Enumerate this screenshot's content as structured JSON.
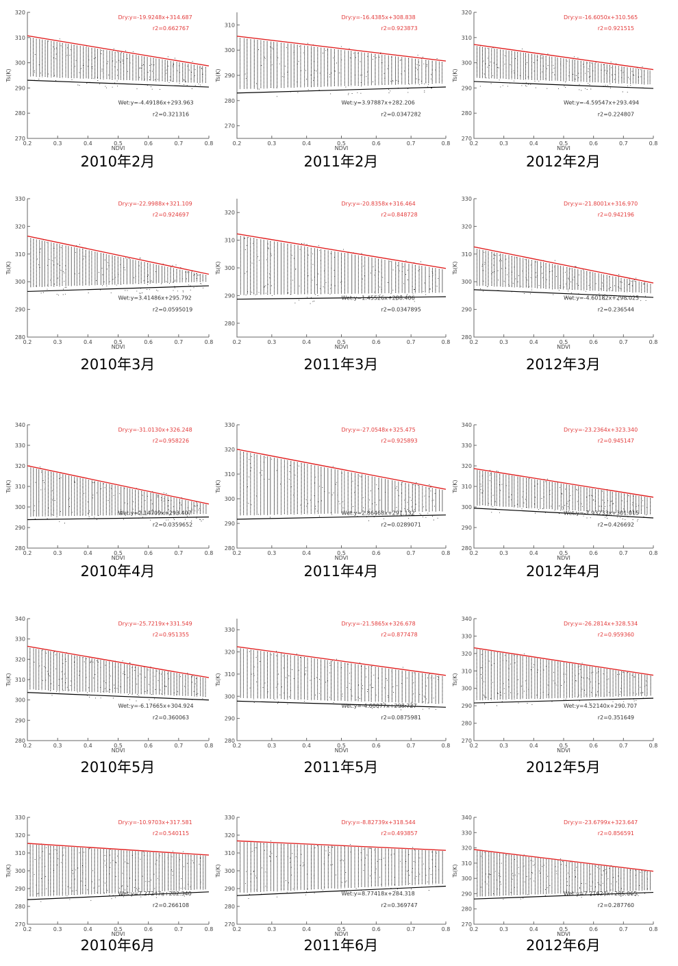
{
  "colors": {
    "dry": "#e02020",
    "wet": "#000000",
    "points": "#000000",
    "axis": "#666666"
  },
  "chart_data": [
    {
      "caption": "2010年2月",
      "type": "scatter",
      "xlabel": "NDVI",
      "ylabel": "Ts(K)",
      "xlim": [
        0.2,
        0.8
      ],
      "ylim": [
        270,
        320
      ],
      "xticks": [
        "0.2",
        "0.3",
        "0.4",
        "0.5",
        "0.6",
        "0.7",
        "0.8"
      ],
      "yticks": [
        "270",
        "280",
        "290",
        "300",
        "310",
        "320"
      ],
      "dry_edge": {
        "equation": "Dry:y=-19.9248x+314.687",
        "r2": "r2=0.662767",
        "slope": -19.9248,
        "intercept": 314.687
      },
      "wet_edge": {
        "equation": "Wet:y=-4.49186x+293.963",
        "r2": "r2=0.321316",
        "slope": -4.49186,
        "intercept": 293.963
      }
    },
    {
      "caption": "2011年2月",
      "type": "scatter",
      "xlabel": "NDVI",
      "ylabel": "Ts(K)",
      "xlim": [
        0.2,
        0.8
      ],
      "ylim": [
        265,
        315
      ],
      "xticks": [
        "0.2",
        "0.3",
        "0.4",
        "0.5",
        "0.6",
        "0.7",
        "0.8"
      ],
      "yticks": [
        "270",
        "280",
        "290",
        "300",
        "310"
      ],
      "dry_edge": {
        "equation": "Dry:y=-16.4385x+308.838",
        "r2": "r2=0.923873",
        "slope": -16.4385,
        "intercept": 308.838
      },
      "wet_edge": {
        "equation": "Wet:y=3.97887x+282.206",
        "r2": "r2=0.0347282",
        "slope": 3.97887,
        "intercept": 282.206
      }
    },
    {
      "caption": "2012年2月",
      "type": "scatter",
      "xlabel": "NDVI",
      "ylabel": "Ts(K)",
      "xlim": [
        0.2,
        0.8
      ],
      "ylim": [
        270,
        320
      ],
      "xticks": [
        "0.2",
        "0.3",
        "0.4",
        "0.5",
        "0.6",
        "0.7",
        "0.8"
      ],
      "yticks": [
        "270",
        "280",
        "290",
        "300",
        "310",
        "320"
      ],
      "dry_edge": {
        "equation": "Dry:y=-16.6050x+310.565",
        "r2": "r2=0.921515",
        "slope": -16.605,
        "intercept": 310.565
      },
      "wet_edge": {
        "equation": "Wet:y=-4.59547x+293.494",
        "r2": "r2=0.224807",
        "slope": -4.59547,
        "intercept": 293.494
      }
    },
    {
      "caption": "2010年3月",
      "type": "scatter",
      "xlabel": "NDVI",
      "ylabel": "Ts(K)",
      "xlim": [
        0.2,
        0.8
      ],
      "ylim": [
        280,
        330
      ],
      "xticks": [
        "0.2",
        "0.3",
        "0.4",
        "0.5",
        "0.6",
        "0.7",
        "0.8"
      ],
      "yticks": [
        "280",
        "290",
        "300",
        "310",
        "320",
        "330"
      ],
      "dry_edge": {
        "equation": "Dry:y=-22.9988x+321.109",
        "r2": "r2=0.924697",
        "slope": -22.9988,
        "intercept": 321.109
      },
      "wet_edge": {
        "equation": "Wet:y=3.41486x+295.792",
        "r2": "r2=0.0595019",
        "slope": 3.41486,
        "intercept": 295.792
      }
    },
    {
      "caption": "2011年3月",
      "type": "scatter",
      "xlabel": "NDVI",
      "ylabel": "Ts(K)",
      "xlim": [
        0.2,
        0.8
      ],
      "ylim": [
        275,
        325
      ],
      "xticks": [
        "0.2",
        "0.3",
        "0.4",
        "0.5",
        "0.6",
        "0.7",
        "0.8"
      ],
      "yticks": [
        "280",
        "290",
        "300",
        "310",
        "320"
      ],
      "dry_edge": {
        "equation": "Dry:y=-20.8358x+316.464",
        "r2": "r2=0.848728",
        "slope": -20.8358,
        "intercept": 316.464
      },
      "wet_edge": {
        "equation": "Wet:y=1.45526x+288.406",
        "r2": "r2=0.0347895",
        "slope": 1.45526,
        "intercept": 288.406
      }
    },
    {
      "caption": "2012年3月",
      "type": "scatter",
      "xlabel": "NDVI",
      "ylabel": "Ts(K)",
      "xlim": [
        0.2,
        0.8
      ],
      "ylim": [
        280,
        330
      ],
      "xticks": [
        "0.2",
        "0.3",
        "0.4",
        "0.5",
        "0.6",
        "0.7",
        "0.8"
      ],
      "yticks": [
        "280",
        "290",
        "300",
        "310",
        "320",
        "330"
      ],
      "dry_edge": {
        "equation": "Dry:y=-21.8001x+316.970",
        "r2": "r2=0.942196",
        "slope": -21.8001,
        "intercept": 316.97
      },
      "wet_edge": {
        "equation": "Wet:y=-4.60182x+298.025",
        "r2": "r2=0.236544",
        "slope": -4.60182,
        "intercept": 298.025
      }
    },
    {
      "caption": "2010年4月",
      "type": "scatter",
      "xlabel": "NDVI",
      "ylabel": "Ts(K)",
      "xlim": [
        0.2,
        0.8
      ],
      "ylim": [
        280,
        340
      ],
      "xticks": [
        "0.2",
        "0.3",
        "0.4",
        "0.5",
        "0.6",
        "0.7",
        "0.8"
      ],
      "yticks": [
        "280",
        "290",
        "300",
        "310",
        "320",
        "330",
        "340"
      ],
      "dry_edge": {
        "equation": "Dry:y=-31.0130x+326.248",
        "r2": "r2=0.958226",
        "slope": -31.013,
        "intercept": 326.248
      },
      "wet_edge": {
        "equation": "Wet:y=2.14709x+293.407",
        "r2": "r2=0.0359652",
        "slope": 2.14709,
        "intercept": 293.407
      }
    },
    {
      "caption": "2011年4月",
      "type": "scatter",
      "xlabel": "NDVI",
      "ylabel": "Ts(K)",
      "xlim": [
        0.2,
        0.8
      ],
      "ylim": [
        280,
        330
      ],
      "xticks": [
        "0.2",
        "0.3",
        "0.4",
        "0.5",
        "0.6",
        "0.7",
        "0.8"
      ],
      "yticks": [
        "280",
        "290",
        "300",
        "310",
        "320",
        "330"
      ],
      "dry_edge": {
        "equation": "Dry:y=-27.0548x+325.475",
        "r2": "r2=0.925893",
        "slope": -27.0548,
        "intercept": 325.475
      },
      "wet_edge": {
        "equation": "Wet:y=2.86468x+291.132",
        "r2": "r2=0.0289071",
        "slope": 2.86468,
        "intercept": 291.132
      }
    },
    {
      "caption": "2012年4月",
      "type": "scatter",
      "xlabel": "NDVI",
      "ylabel": "Ts(K)",
      "xlim": [
        0.2,
        0.8
      ],
      "ylim": [
        280,
        340
      ],
      "xticks": [
        "0.2",
        "0.3",
        "0.4",
        "0.5",
        "0.6",
        "0.7",
        "0.8"
      ],
      "yticks": [
        "280",
        "290",
        "300",
        "310",
        "320",
        "330",
        "340"
      ],
      "dry_edge": {
        "equation": "Dry:y=-23.2364x+323.340",
        "r2": "r2=0.945147",
        "slope": -23.2364,
        "intercept": 323.34
      },
      "wet_edge": {
        "equation": "Wet:y=-7.93233x+301.015",
        "r2": "r2=0.426692",
        "slope": -7.93233,
        "intercept": 301.015
      }
    },
    {
      "caption": "2010年5月",
      "type": "scatter",
      "xlabel": "NDVI",
      "ylabel": "Ts(K)",
      "xlim": [
        0.2,
        0.8
      ],
      "ylim": [
        280,
        340
      ],
      "xticks": [
        "0.2",
        "0.3",
        "0.4",
        "0.5",
        "0.6",
        "0.7",
        "0.8"
      ],
      "yticks": [
        "280",
        "290",
        "300",
        "310",
        "320",
        "330",
        "340"
      ],
      "dry_edge": {
        "equation": "Dry:y=-25.7219x+331.549",
        "r2": "r2=0.951355",
        "slope": -25.7219,
        "intercept": 331.549
      },
      "wet_edge": {
        "equation": "Wet:y=-6.17665x+304.924",
        "r2": "r2=0.360063",
        "slope": -6.17665,
        "intercept": 304.924
      }
    },
    {
      "caption": "2011年5月",
      "type": "scatter",
      "xlabel": "NDVI",
      "ylabel": "Ts(K)",
      "xlim": [
        0.2,
        0.8
      ],
      "ylim": [
        280,
        335
      ],
      "xticks": [
        "0.2",
        "0.3",
        "0.4",
        "0.5",
        "0.6",
        "0.7",
        "0.8"
      ],
      "yticks": [
        "280",
        "290",
        "300",
        "310",
        "320",
        "330"
      ],
      "dry_edge": {
        "equation": "Dry:y=-21.5865x+326.678",
        "r2": "r2=0.877478",
        "slope": -21.5865,
        "intercept": 326.678
      },
      "wet_edge": {
        "equation": "Wet:y=-4.60077x+298.727",
        "r2": "r2=0.0875981",
        "slope": -4.60077,
        "intercept": 298.727
      }
    },
    {
      "caption": "2012年5月",
      "type": "scatter",
      "xlabel": "NDVI",
      "ylabel": "Ts(K)",
      "xlim": [
        0.2,
        0.8
      ],
      "ylim": [
        270,
        340
      ],
      "xticks": [
        "0.2",
        "0.3",
        "0.4",
        "0.5",
        "0.6",
        "0.7",
        "0.8"
      ],
      "yticks": [
        "270",
        "280",
        "290",
        "300",
        "310",
        "320",
        "330",
        "340"
      ],
      "dry_edge": {
        "equation": "Dry:y=-26.2814x+328.534",
        "r2": "r2=0.959360",
        "slope": -26.2814,
        "intercept": 328.534
      },
      "wet_edge": {
        "equation": "Wet:y=4.52140x+290.707",
        "r2": "r2=0.351649",
        "slope": 4.5214,
        "intercept": 290.707
      }
    },
    {
      "caption": "2010年6月",
      "type": "scatter",
      "xlabel": "NDVI",
      "ylabel": "Ts(K)",
      "xlim": [
        0.2,
        0.8
      ],
      "ylim": [
        270,
        330
      ],
      "xticks": [
        "0.2",
        "0.3",
        "0.4",
        "0.5",
        "0.6",
        "0.7",
        "0.8"
      ],
      "yticks": [
        "270",
        "280",
        "290",
        "300",
        "310",
        "320",
        "330"
      ],
      "dry_edge": {
        "equation": "Dry:y=-10.9703x+317.581",
        "r2": "r2=0.540115",
        "slope": -10.9703,
        "intercept": 317.581
      },
      "wet_edge": {
        "equation": "Wet:y=7.27247x+282.340",
        "r2": "r2=0.266108",
        "slope": 7.27247,
        "intercept": 282.34
      }
    },
    {
      "caption": "2011年6月",
      "type": "scatter",
      "xlabel": "NDVI",
      "ylabel": "Ts(K)",
      "xlim": [
        0.2,
        0.8
      ],
      "ylim": [
        270,
        330
      ],
      "xticks": [
        "0.2",
        "0.3",
        "0.4",
        "0.5",
        "0.6",
        "0.7",
        "0.8"
      ],
      "yticks": [
        "270",
        "280",
        "290",
        "300",
        "310",
        "320",
        "330"
      ],
      "dry_edge": {
        "equation": "Dry:y=-8.82739x+318.544",
        "r2": "r2=0.493857",
        "slope": -8.82739,
        "intercept": 318.544
      },
      "wet_edge": {
        "equation": "Wet:y=8.77418x+284.318",
        "r2": "r2=0.369747",
        "slope": 8.77418,
        "intercept": 284.318
      }
    },
    {
      "caption": "2012年6月",
      "type": "scatter",
      "xlabel": "NDVI",
      "ylabel": "Ts(K)",
      "xlim": [
        0.2,
        0.8
      ],
      "ylim": [
        270,
        340
      ],
      "xticks": [
        "0.2",
        "0.3",
        "0.4",
        "0.5",
        "0.6",
        "0.7",
        "0.8"
      ],
      "yticks": [
        "270",
        "280",
        "290",
        "300",
        "310",
        "320",
        "330",
        "340"
      ],
      "dry_edge": {
        "equation": "Dry:y=-23.6799x+323.647",
        "r2": "r2=0.856591",
        "slope": -23.6799,
        "intercept": 323.647
      },
      "wet_edge": {
        "equation": "Wet:y=7.21624x+285.065",
        "r2": "r2=0.287760",
        "slope": 7.21624,
        "intercept": 285.065
      }
    }
  ]
}
